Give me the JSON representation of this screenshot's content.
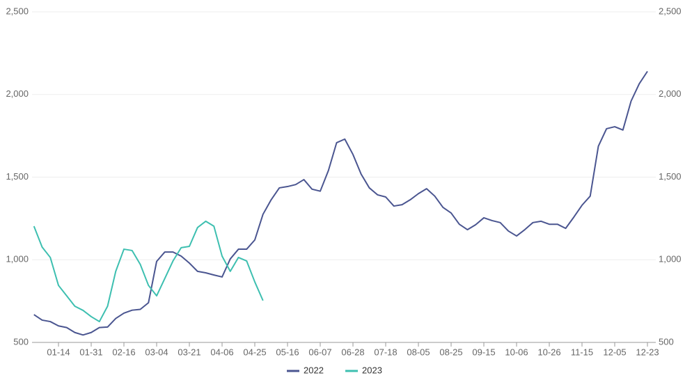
{
  "chart_data": {
    "type": "line",
    "categories": [
      null,
      null,
      null,
      "01-14",
      null,
      null,
      null,
      "01-31",
      null,
      null,
      null,
      "02-16",
      null,
      null,
      null,
      "03-04",
      null,
      null,
      null,
      "03-21",
      null,
      null,
      null,
      "04-06",
      null,
      null,
      null,
      "04-25",
      null,
      null,
      null,
      "05-16",
      null,
      null,
      null,
      "06-07",
      null,
      null,
      null,
      "06-28",
      null,
      null,
      null,
      "07-18",
      null,
      null,
      null,
      "08-05",
      null,
      null,
      null,
      "08-25",
      null,
      null,
      null,
      "09-15",
      null,
      null,
      null,
      "10-06",
      null,
      null,
      null,
      "10-26",
      null,
      null,
      null,
      "11-15",
      null,
      null,
      null,
      "12-05",
      null,
      null,
      null,
      "12-23"
    ],
    "series": [
      {
        "name": "2022",
        "color": "#4a5590",
        "values": [
          668,
          635,
          626,
          600,
          590,
          560,
          545,
          560,
          590,
          593,
          645,
          677,
          695,
          700,
          740,
          990,
          1047,
          1047,
          1022,
          980,
          930,
          921,
          908,
          896,
          1005,
          1064,
          1064,
          1120,
          1275,
          1363,
          1435,
          1443,
          1455,
          1485,
          1427,
          1415,
          1540,
          1708,
          1730,
          1637,
          1518,
          1435,
          1393,
          1380,
          1325,
          1333,
          1363,
          1400,
          1430,
          1385,
          1317,
          1283,
          1215,
          1182,
          1212,
          1254,
          1237,
          1225,
          1174,
          1144,
          1182,
          1225,
          1233,
          1215,
          1215,
          1190,
          1258,
          1330,
          1385,
          1687,
          1793,
          1805,
          1785,
          1960,
          2065,
          2140
        ]
      },
      {
        "name": "2023",
        "color": "#3dbfb0",
        "values": [
          1203,
          1077,
          1014,
          845,
          782,
          719,
          694,
          656,
          626,
          719,
          930,
          1064,
          1056,
          972,
          845,
          782,
          887,
          993,
          1073,
          1081,
          1195,
          1233,
          1203,
          1022,
          930,
          1014,
          993,
          866,
          753,
          null,
          null,
          null,
          null,
          null,
          null,
          null,
          null,
          null,
          null,
          null,
          null,
          null,
          null,
          null,
          null,
          null,
          null,
          null,
          null,
          null,
          null,
          null,
          null,
          null,
          null,
          null,
          null,
          null,
          null,
          null,
          null,
          null,
          null,
          null,
          null,
          null,
          null,
          null,
          null,
          null,
          null,
          null,
          null,
          null,
          null,
          null
        ]
      }
    ],
    "ylim": [
      500,
      2500
    ],
    "yticks": [
      500,
      {
        "value": 1000,
        "label": "1,000"
      },
      {
        "value": 1500,
        "label": "1,500"
      },
      {
        "value": 2000,
        "label": "2,000"
      },
      {
        "value": 2500,
        "label": "2,500"
      }
    ],
    "y2lim": [
      500,
      2500
    ],
    "y2ticks": [
      500,
      {
        "value": 1000,
        "label": "1,000"
      },
      {
        "value": 1500,
        "label": "1,500"
      },
      {
        "value": 2000,
        "label": "2,000"
      },
      {
        "value": 2500,
        "label": "2,500"
      }
    ],
    "grid": true,
    "legend": "bottom"
  }
}
